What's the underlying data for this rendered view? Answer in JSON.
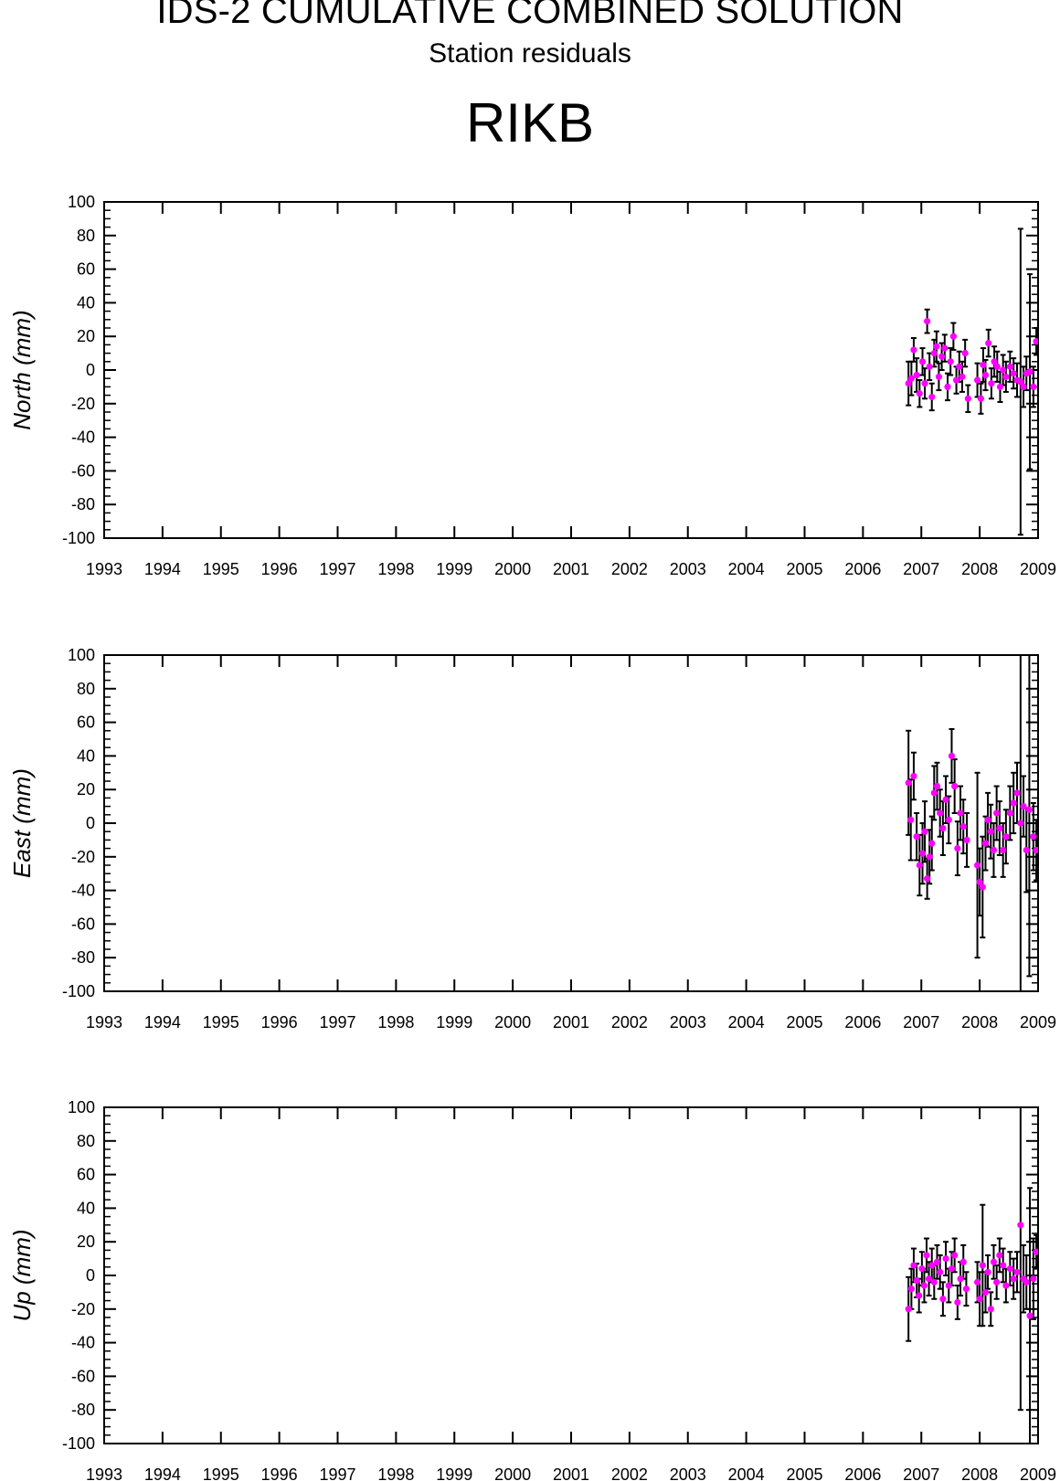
{
  "header": {
    "title": "IDS-2 CUMULATIVE COMBINED SOLUTION",
    "subtitle": "Station residuals",
    "station": "RIKB"
  },
  "colors": {
    "point": "#ff00ff",
    "errorbar": "#000000",
    "axis": "#000000"
  },
  "chart_data": [
    {
      "type": "scatter",
      "panel": "north",
      "ylabel": "North (mm)",
      "xlim": [
        1993,
        2009
      ],
      "ylim": [
        -100,
        100
      ],
      "x_ticks": [
        "1993",
        "1994",
        "1995",
        "1996",
        "1997",
        "1998",
        "1999",
        "2000",
        "2001",
        "2002",
        "2003",
        "2004",
        "2005",
        "2006",
        "2007",
        "2008",
        "2009"
      ],
      "y_ticks": [
        "100",
        "80",
        "60",
        "40",
        "20",
        "0",
        "-20",
        "-40",
        "-60",
        "-80",
        "-100"
      ],
      "points": [
        {
          "x": 2006.78,
          "y": -8,
          "err": 13
        },
        {
          "x": 2006.83,
          "y": -5,
          "err": 10
        },
        {
          "x": 2006.87,
          "y": 12,
          "err": 7
        },
        {
          "x": 2006.92,
          "y": -3,
          "err": 10
        },
        {
          "x": 2006.97,
          "y": -14,
          "err": 8
        },
        {
          "x": 2007.02,
          "y": 5,
          "err": 8
        },
        {
          "x": 2007.06,
          "y": -8,
          "err": 9
        },
        {
          "x": 2007.1,
          "y": 29,
          "err": 7
        },
        {
          "x": 2007.14,
          "y": 2,
          "err": 8
        },
        {
          "x": 2007.18,
          "y": -16,
          "err": 8
        },
        {
          "x": 2007.22,
          "y": 10,
          "err": 8
        },
        {
          "x": 2007.26,
          "y": 14,
          "err": 9
        },
        {
          "x": 2007.3,
          "y": -4,
          "err": 8
        },
        {
          "x": 2007.35,
          "y": 8,
          "err": 8
        },
        {
          "x": 2007.4,
          "y": 13,
          "err": 8
        },
        {
          "x": 2007.45,
          "y": -10,
          "err": 8
        },
        {
          "x": 2007.5,
          "y": 5,
          "err": 8
        },
        {
          "x": 2007.55,
          "y": 20,
          "err": 8
        },
        {
          "x": 2007.6,
          "y": -6,
          "err": 8
        },
        {
          "x": 2007.65,
          "y": 2,
          "err": 9
        },
        {
          "x": 2007.7,
          "y": -4,
          "err": 9
        },
        {
          "x": 2007.75,
          "y": 10,
          "err": 8
        },
        {
          "x": 2007.8,
          "y": -17,
          "err": 8
        },
        {
          "x": 2007.96,
          "y": -6,
          "err": 10
        },
        {
          "x": 2008.02,
          "y": -17,
          "err": 9
        },
        {
          "x": 2008.06,
          "y": 3,
          "err": 10
        },
        {
          "x": 2008.1,
          "y": -3,
          "err": 9
        },
        {
          "x": 2008.15,
          "y": 16,
          "err": 8
        },
        {
          "x": 2008.2,
          "y": -8,
          "err": 9
        },
        {
          "x": 2008.25,
          "y": 5,
          "err": 9
        },
        {
          "x": 2008.3,
          "y": 2,
          "err": 9
        },
        {
          "x": 2008.35,
          "y": -10,
          "err": 9
        },
        {
          "x": 2008.4,
          "y": 0,
          "err": 9
        },
        {
          "x": 2008.45,
          "y": -4,
          "err": 9
        },
        {
          "x": 2008.52,
          "y": 2,
          "err": 9
        },
        {
          "x": 2008.58,
          "y": -2,
          "err": 9
        },
        {
          "x": 2008.64,
          "y": -6,
          "err": 10
        },
        {
          "x": 2008.7,
          "y": -7,
          "err": 91
        },
        {
          "x": 2008.75,
          "y": -10,
          "err": 12
        },
        {
          "x": 2008.8,
          "y": -2,
          "err": 10
        },
        {
          "x": 2008.86,
          "y": -1,
          "err": 58
        },
        {
          "x": 2008.92,
          "y": -10,
          "err": 12
        },
        {
          "x": 2008.97,
          "y": 17,
          "err": 8
        }
      ]
    },
    {
      "type": "scatter",
      "panel": "east",
      "ylabel": "East (mm)",
      "xlim": [
        1993,
        2009
      ],
      "ylim": [
        -100,
        100
      ],
      "x_ticks": [
        "1993",
        "1994",
        "1995",
        "1996",
        "1997",
        "1998",
        "1999",
        "2000",
        "2001",
        "2002",
        "2003",
        "2004",
        "2005",
        "2006",
        "2007",
        "2008",
        "2009"
      ],
      "y_ticks": [
        "100",
        "80",
        "60",
        "40",
        "20",
        "0",
        "-20",
        "-40",
        "-60",
        "-80",
        "-100"
      ],
      "points": [
        {
          "x": 2006.78,
          "y": 24,
          "err": 31
        },
        {
          "x": 2006.82,
          "y": 2,
          "err": 24
        },
        {
          "x": 2006.87,
          "y": 28,
          "err": 14
        },
        {
          "x": 2006.92,
          "y": -8,
          "err": 14
        },
        {
          "x": 2006.97,
          "y": -25,
          "err": 18
        },
        {
          "x": 2007.02,
          "y": -18,
          "err": 18
        },
        {
          "x": 2007.06,
          "y": -5,
          "err": 18
        },
        {
          "x": 2007.1,
          "y": -33,
          "err": 12
        },
        {
          "x": 2007.14,
          "y": -20,
          "err": 16
        },
        {
          "x": 2007.18,
          "y": -12,
          "err": 16
        },
        {
          "x": 2007.22,
          "y": 18,
          "err": 16
        },
        {
          "x": 2007.27,
          "y": 22,
          "err": 14
        },
        {
          "x": 2007.32,
          "y": 6,
          "err": 14
        },
        {
          "x": 2007.37,
          "y": -3,
          "err": 16
        },
        {
          "x": 2007.42,
          "y": 14,
          "err": 14
        },
        {
          "x": 2007.47,
          "y": 2,
          "err": 14
        },
        {
          "x": 2007.52,
          "y": 40,
          "err": 16
        },
        {
          "x": 2007.57,
          "y": 22,
          "err": 16
        },
        {
          "x": 2007.62,
          "y": -15,
          "err": 16
        },
        {
          "x": 2007.67,
          "y": 6,
          "err": 16
        },
        {
          "x": 2007.72,
          "y": -2,
          "err": 16
        },
        {
          "x": 2007.78,
          "y": -10,
          "err": 16
        },
        {
          "x": 2007.96,
          "y": -25,
          "err": 55
        },
        {
          "x": 2008.0,
          "y": -35,
          "err": 20
        },
        {
          "x": 2008.05,
          "y": -38,
          "err": 30
        },
        {
          "x": 2008.1,
          "y": -12,
          "err": 16
        },
        {
          "x": 2008.14,
          "y": 2,
          "err": 16
        },
        {
          "x": 2008.19,
          "y": -5,
          "err": 16
        },
        {
          "x": 2008.24,
          "y": -16,
          "err": 16
        },
        {
          "x": 2008.29,
          "y": 6,
          "err": 16
        },
        {
          "x": 2008.34,
          "y": -3,
          "err": 16
        },
        {
          "x": 2008.4,
          "y": -16,
          "err": 16
        },
        {
          "x": 2008.45,
          "y": -8,
          "err": 16
        },
        {
          "x": 2008.52,
          "y": 6,
          "err": 16
        },
        {
          "x": 2008.58,
          "y": 12,
          "err": 18
        },
        {
          "x": 2008.64,
          "y": 18,
          "err": 18
        },
        {
          "x": 2008.7,
          "y": 0,
          "err": 150
        },
        {
          "x": 2008.75,
          "y": 10,
          "err": 18
        },
        {
          "x": 2008.8,
          "y": -16,
          "err": 25
        },
        {
          "x": 2008.85,
          "y": 8,
          "err": 99
        },
        {
          "x": 2008.92,
          "y": -8,
          "err": 20
        },
        {
          "x": 2008.97,
          "y": -16,
          "err": 18
        }
      ]
    },
    {
      "type": "scatter",
      "panel": "up",
      "ylabel": "Up (mm)",
      "xlim": [
        1993,
        2009
      ],
      "ylim": [
        -100,
        100
      ],
      "x_ticks": [
        "1993",
        "1994",
        "1995",
        "1996",
        "1997",
        "1998",
        "1999",
        "2000",
        "2001",
        "2002",
        "2003",
        "2004",
        "2005",
        "2006",
        "2007",
        "2008",
        "2009"
      ],
      "y_ticks": [
        "100",
        "80",
        "60",
        "40",
        "20",
        "0",
        "-20",
        "-40",
        "-60",
        "-80",
        "-100"
      ],
      "points": [
        {
          "x": 2006.78,
          "y": -20,
          "err": 19
        },
        {
          "x": 2006.83,
          "y": -8,
          "err": 12
        },
        {
          "x": 2006.87,
          "y": 6,
          "err": 10
        },
        {
          "x": 2006.92,
          "y": -3,
          "err": 10
        },
        {
          "x": 2006.96,
          "y": -12,
          "err": 10
        },
        {
          "x": 2007.01,
          "y": 4,
          "err": 10
        },
        {
          "x": 2007.05,
          "y": -6,
          "err": 10
        },
        {
          "x": 2007.09,
          "y": 12,
          "err": 10
        },
        {
          "x": 2007.13,
          "y": -2,
          "err": 10
        },
        {
          "x": 2007.18,
          "y": 6,
          "err": 10
        },
        {
          "x": 2007.22,
          "y": -4,
          "err": 10
        },
        {
          "x": 2007.27,
          "y": 8,
          "err": 10
        },
        {
          "x": 2007.32,
          "y": 2,
          "err": 10
        },
        {
          "x": 2007.37,
          "y": -14,
          "err": 10
        },
        {
          "x": 2007.42,
          "y": 10,
          "err": 10
        },
        {
          "x": 2007.47,
          "y": -6,
          "err": 10
        },
        {
          "x": 2007.52,
          "y": 4,
          "err": 10
        },
        {
          "x": 2007.57,
          "y": 12,
          "err": 10
        },
        {
          "x": 2007.62,
          "y": -16,
          "err": 10
        },
        {
          "x": 2007.67,
          "y": -2,
          "err": 10
        },
        {
          "x": 2007.72,
          "y": 8,
          "err": 10
        },
        {
          "x": 2007.77,
          "y": -8,
          "err": 10
        },
        {
          "x": 2007.96,
          "y": -4,
          "err": 12
        },
        {
          "x": 2008.0,
          "y": -14,
          "err": 16
        },
        {
          "x": 2008.05,
          "y": 6,
          "err": 36
        },
        {
          "x": 2008.1,
          "y": -10,
          "err": 12
        },
        {
          "x": 2008.14,
          "y": 2,
          "err": 10
        },
        {
          "x": 2008.19,
          "y": -20,
          "err": 10
        },
        {
          "x": 2008.24,
          "y": 8,
          "err": 10
        },
        {
          "x": 2008.29,
          "y": -4,
          "err": 10
        },
        {
          "x": 2008.34,
          "y": 12,
          "err": 10
        },
        {
          "x": 2008.4,
          "y": 6,
          "err": 10
        },
        {
          "x": 2008.45,
          "y": -6,
          "err": 10
        },
        {
          "x": 2008.52,
          "y": 4,
          "err": 10
        },
        {
          "x": 2008.58,
          "y": -2,
          "err": 12
        },
        {
          "x": 2008.64,
          "y": 2,
          "err": 12
        },
        {
          "x": 2008.7,
          "y": 30,
          "err": 110
        },
        {
          "x": 2008.75,
          "y": -2,
          "err": 20
        },
        {
          "x": 2008.8,
          "y": -4,
          "err": 16
        },
        {
          "x": 2008.86,
          "y": -24,
          "err": 76
        },
        {
          "x": 2008.92,
          "y": -2,
          "err": 24
        },
        {
          "x": 2008.97,
          "y": 14,
          "err": 10
        }
      ]
    }
  ]
}
